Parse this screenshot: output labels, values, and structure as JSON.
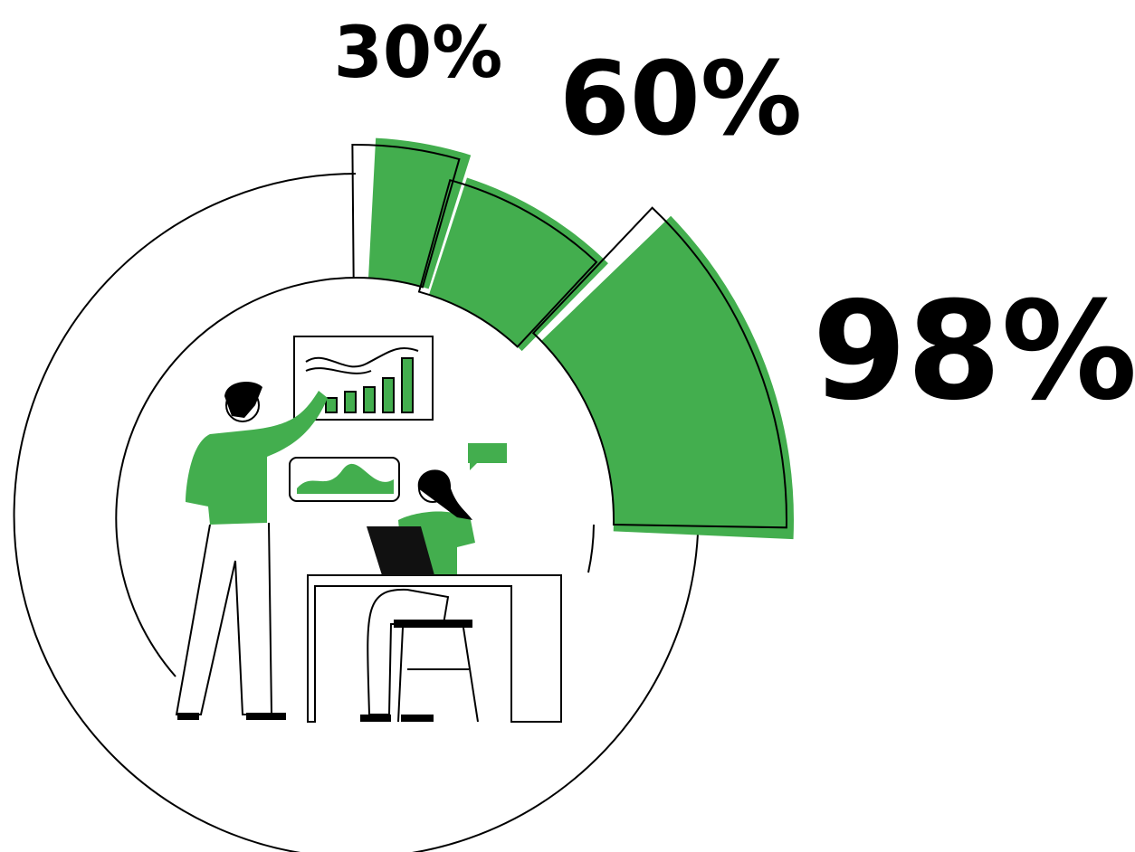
{
  "labels": [
    "30%",
    "60%",
    "98%"
  ]
}
